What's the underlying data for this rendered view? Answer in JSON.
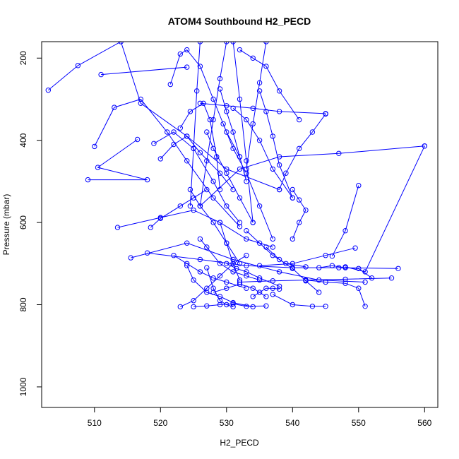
{
  "chart_data": {
    "type": "line",
    "title": "ATOM4 Southbound H2_PECD",
    "xlabel": "H2_PECD",
    "ylabel": "Pressure (mbar)",
    "xlim": [
      502,
      562
    ],
    "ylim": [
      1050,
      160
    ],
    "y_inverted": true,
    "x_ticks": [
      510,
      520,
      530,
      540,
      550,
      560
    ],
    "y_ticks": [
      200,
      400,
      600,
      800,
      1000
    ],
    "grid": false,
    "legend": "none",
    "color": "#0000ff",
    "marker": "open-circle",
    "series": [
      {
        "x": [
          503,
          507.5,
          514,
          517,
          524,
          530,
          538
        ],
        "y": [
          278,
          218,
          160,
          310,
          390,
          470,
          520
        ]
      },
      {
        "x": [
          511,
          524
        ],
        "y": [
          240,
          222
        ]
      },
      {
        "x": [
          510,
          513,
          517,
          521,
          524,
          528,
          532
        ],
        "y": [
          415,
          320,
          300,
          380,
          450,
          540,
          610
        ]
      },
      {
        "x": [
          509,
          518,
          510.5,
          516.5
        ],
        "y": [
          496,
          496,
          466,
          398
        ]
      },
      {
        "x": [
          513.5,
          520,
          525,
          529,
          533,
          537
        ],
        "y": [
          612,
          588,
          570,
          600,
          640,
          660
        ]
      },
      {
        "x": [
          515.5,
          524,
          531,
          538,
          544,
          551
        ],
        "y": [
          686,
          650,
          690,
          720,
          740,
          745
        ]
      },
      {
        "x": [
          518,
          526,
          533,
          540,
          547,
          556
        ],
        "y": [
          674,
          690,
          705,
          710,
          710,
          712
        ]
      },
      {
        "x": [
          518.5,
          520,
          523,
          525,
          527
        ],
        "y": [
          612,
          590,
          560,
          540,
          520
        ]
      },
      {
        "x": [
          519,
          522,
          525,
          528,
          530,
          532
        ],
        "y": [
          408,
          380,
          420,
          500,
          560,
          600
        ]
      },
      {
        "x": [
          520,
          522,
          524,
          526,
          529,
          531
        ],
        "y": [
          445,
          410,
          390,
          430,
          480,
          520
        ]
      },
      {
        "x": [
          521.5,
          523,
          524,
          526,
          528,
          530,
          532
        ],
        "y": [
          264,
          190,
          180,
          220,
          300,
          380,
          440
        ]
      },
      {
        "x": [
          522,
          524,
          526,
          528,
          530,
          533
        ],
        "y": [
          680,
          700,
          720,
          735,
          745,
          760
        ]
      },
      {
        "x": [
          523,
          524.5,
          526.5,
          527.5,
          528.5,
          529
        ],
        "y": [
          370,
          330,
          310,
          350,
          440,
          520
        ]
      },
      {
        "x": [
          524,
          525,
          527,
          529,
          531,
          534
        ],
        "y": [
          705,
          740,
          770,
          780,
          795,
          805
        ]
      },
      {
        "x": [
          524.5,
          526,
          528,
          530,
          532
        ],
        "y": [
          520,
          560,
          600,
          650,
          700
        ]
      },
      {
        "x": [
          525,
          527,
          529,
          531,
          533,
          536
        ],
        "y": [
          805,
          803,
          800,
          798,
          804,
          803
        ]
      },
      {
        "x": [
          526,
          527,
          529,
          531,
          533,
          535
        ],
        "y": [
          640,
          660,
          700,
          720,
          730,
          740
        ]
      },
      {
        "x": [
          527,
          528,
          530,
          532,
          534
        ],
        "y": [
          380,
          420,
          480,
          540,
          600
        ]
      },
      {
        "x": [
          528,
          530,
          532,
          534,
          536
        ],
        "y": [
          770,
          760,
          750,
          760,
          780
        ]
      },
      {
        "x": [
          529,
          530,
          531,
          532,
          533
        ],
        "y": [
          275,
          330,
          380,
          440,
          500
        ]
      },
      {
        "x": [
          529.5,
          531,
          533,
          535,
          537
        ],
        "y": [
          360,
          420,
          480,
          560,
          640
        ]
      },
      {
        "x": [
          530,
          531.5,
          533,
          535,
          538
        ],
        "y": [
          700,
          712,
          720,
          735,
          755
        ]
      },
      {
        "x": [
          531,
          533,
          535,
          537,
          540
        ],
        "y": [
          322,
          350,
          400,
          470,
          540
        ]
      },
      {
        "x": [
          532,
          534,
          536,
          538,
          541
        ],
        "y": [
          180,
          200,
          220,
          280,
          350
        ]
      },
      {
        "x": [
          533,
          535,
          537,
          539,
          542
        ],
        "y": [
          620,
          650,
          680,
          700,
          708
        ]
      },
      {
        "x": [
          534,
          535,
          536,
          537,
          538
        ],
        "y": [
          780,
          770,
          760,
          760,
          762
        ]
      },
      {
        "x": [
          535,
          536,
          537,
          538,
          540
        ],
        "y": [
          280,
          330,
          390,
          460,
          540
        ]
      },
      {
        "x": [
          536,
          538,
          540,
          542,
          544
        ],
        "y": [
          660,
          690,
          712,
          742,
          770
        ]
      },
      {
        "x": [
          537,
          540,
          543,
          545
        ],
        "y": [
          775,
          800,
          804,
          804
        ]
      },
      {
        "x": [
          538,
          539,
          541,
          543,
          545
        ],
        "y": [
          520,
          480,
          420,
          380,
          336
        ]
      },
      {
        "x": [
          540,
          541,
          542,
          541,
          540
        ],
        "y": [
          640,
          600,
          570,
          545,
          520
        ]
      },
      {
        "x": [
          542,
          545,
          548,
          550,
          551
        ],
        "y": [
          740,
          745,
          748,
          760,
          804
        ]
      },
      {
        "x": [
          544,
          546,
          548,
          550,
          552
        ],
        "y": [
          710,
          705,
          710,
          712,
          735
        ]
      },
      {
        "x": [
          546,
          548,
          550
        ],
        "y": [
          682,
          620,
          510
        ]
      },
      {
        "x": [
          548,
          551,
          560
        ],
        "y": [
          708,
          720,
          414
        ]
      },
      {
        "x": [
          549.5,
          545,
          540,
          535
        ],
        "y": [
          662,
          680,
          700,
          705
        ]
      },
      {
        "x": [
          560,
          547,
          538,
          532,
          526
        ],
        "y": [
          414,
          432,
          440,
          470,
          560
        ]
      },
      {
        "x": [
          555,
          548,
          542,
          537,
          532
        ],
        "y": [
          735,
          738,
          740,
          742,
          745
        ]
      },
      {
        "x": [
          545,
          538,
          534,
          530,
          526
        ],
        "y": [
          335,
          330,
          322,
          316,
          310
        ]
      },
      {
        "x": [
          523,
          525,
          527,
          529,
          531,
          533
        ],
        "y": [
          805,
          790,
          760,
          730,
          700,
          680
        ]
      },
      {
        "x": [
          527,
          528,
          529,
          530,
          531
        ],
        "y": [
          710,
          760,
          790,
          800,
          805
        ]
      },
      {
        "x": [
          530,
          529,
          528,
          527,
          526
        ],
        "y": [
          160,
          250,
          350,
          450,
          560
        ]
      },
      {
        "x": [
          526,
          525.5,
          525,
          524.5
        ],
        "y": [
          160,
          280,
          420,
          560
        ]
      },
      {
        "x": [
          531,
          532,
          533,
          534
        ],
        "y": [
          160,
          300,
          450,
          600
        ]
      },
      {
        "x": [
          536,
          535,
          534,
          533
        ],
        "y": [
          160,
          260,
          360,
          470
        ]
      },
      {
        "x": [
          529,
          530,
          531,
          532
        ],
        "y": [
          600,
          650,
          700,
          740
        ]
      }
    ]
  }
}
